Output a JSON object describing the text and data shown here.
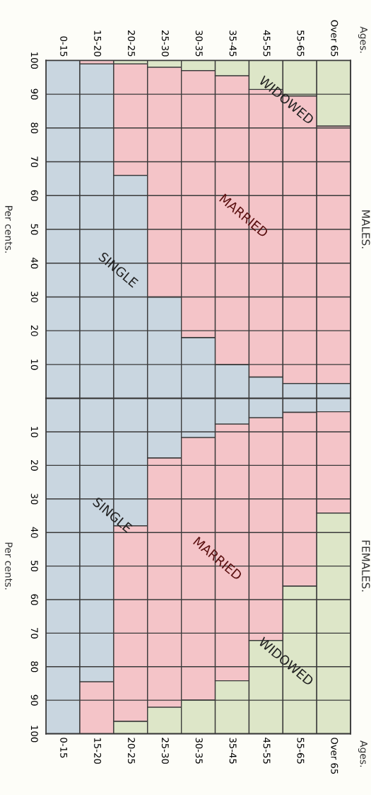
{
  "chart_data": [
    {
      "type": "bar",
      "stacked": true,
      "annotations": [
        "MALES.",
        "Ages."
      ],
      "ylabel": "Per cents.",
      "categories": [
        "0-15",
        "15-20",
        "20-25",
        "25-30",
        "30-35",
        "35-45",
        "45-55",
        "55-65",
        "Over 65"
      ],
      "series": [
        {
          "name": "SINGLE",
          "color": "#c9d6e0",
          "values": [
            100,
            99,
            66,
            30,
            18,
            10,
            6.3,
            4.4,
            4.4
          ]
        },
        {
          "name": "MARRIED",
          "color": "#f4c4c8",
          "values": [
            0,
            1,
            33,
            68,
            79,
            85.5,
            85.1,
            85.1,
            76.2
          ]
        },
        {
          "name": "WIDOWED",
          "color": "#dde6c8",
          "values": [
            0,
            0,
            1,
            2,
            3,
            4.5,
            8.6,
            10.5,
            19.4
          ]
        }
      ],
      "ylim": [
        0,
        100
      ],
      "yticks": [
        {
          "value": 0,
          "label": null
        },
        10,
        20,
        30,
        40,
        50,
        60,
        70,
        80,
        90,
        100
      ],
      "grid": "y",
      "legend": false
    },
    {
      "type": "bar",
      "stacked": true,
      "annotations": [
        "FEMALES.",
        "Ages."
      ],
      "ylabel": "Per cents.",
      "categories": [
        "0-15",
        "15-20",
        "20-25",
        "25-30",
        "30-35",
        "35-45",
        "45-55",
        "55-65",
        "Over 65"
      ],
      "series": [
        {
          "name": "SINGLE",
          "color": "#c9d6e0",
          "values": [
            100,
            84.5,
            38,
            17.8,
            11.7,
            7.7,
            5.8,
            4.2,
            4
          ]
        },
        {
          "name": "MARRIED",
          "color": "#f4c4c8",
          "values": [
            0,
            15.5,
            58.3,
            74.3,
            78.2,
            76.5,
            66.4,
            51.8,
            30.2
          ]
        },
        {
          "name": "WIDOWED",
          "color": "#dde6c8",
          "values": [
            0,
            0,
            3.7,
            7.9,
            10.1,
            15.8,
            27.8,
            44,
            65.8
          ]
        }
      ],
      "ylim": [
        100,
        0
      ],
      "yticks": [
        {
          "value": 0,
          "label": null
        },
        10,
        20,
        30,
        40,
        50,
        60,
        70,
        80,
        90,
        100
      ],
      "grid": "y",
      "legend": false
    }
  ]
}
